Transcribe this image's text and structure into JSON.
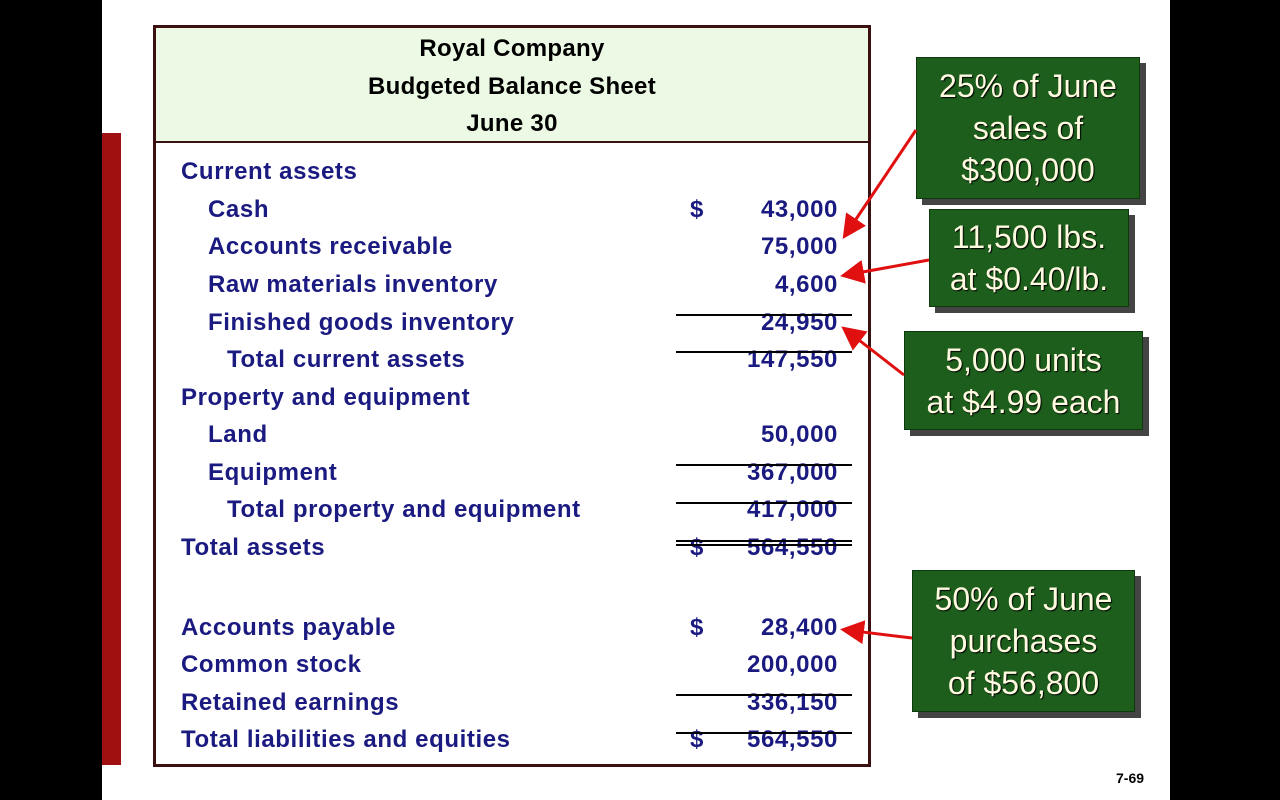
{
  "header": {
    "company": "Royal Company",
    "title": "Budgeted Balance Sheet",
    "date": "June 30"
  },
  "rows": [
    {
      "label": "Current assets",
      "level": 0,
      "dollar": "",
      "amount": ""
    },
    {
      "label": "Cash",
      "level": 1,
      "dollar": "$",
      "amount": "43,000"
    },
    {
      "label": "Accounts receivable",
      "level": 1,
      "dollar": "",
      "amount": "75,000"
    },
    {
      "label": "Raw materials inventory",
      "level": 1,
      "dollar": "",
      "amount": "4,600"
    },
    {
      "label": "Finished goods inventory",
      "level": 1,
      "dollar": "",
      "amount": "24,950"
    },
    {
      "label": "Total current assets",
      "level": 2,
      "dollar": "",
      "amount": "147,550"
    },
    {
      "label": "Property and equipment",
      "level": 0,
      "dollar": "",
      "amount": ""
    },
    {
      "label": "Land",
      "level": 1,
      "dollar": "",
      "amount": "50,000"
    },
    {
      "label": "Equipment",
      "level": 1,
      "dollar": "",
      "amount": "367,000"
    },
    {
      "label": "Total property and equipment",
      "level": 2,
      "dollar": "",
      "amount": "417,000"
    },
    {
      "label": "Total assets",
      "level": 0,
      "dollar": "$",
      "amount": "564,550"
    },
    {
      "label": "Accounts payable",
      "level": 0,
      "dollar": "$",
      "amount": "28,400"
    },
    {
      "label": "Common stock",
      "level": 0,
      "dollar": "",
      "amount": "200,000"
    },
    {
      "label": "Retained earnings",
      "level": 0,
      "dollar": "",
      "amount": "336,150"
    },
    {
      "label": "Total liabilities and equities",
      "level": 0,
      "dollar": "$",
      "amount": "564,550"
    }
  ],
  "callouts": [
    {
      "lines": [
        "25% of June",
        "sales of",
        "$300,000"
      ]
    },
    {
      "lines": [
        "11,500 lbs.",
        "at $0.40/lb."
      ]
    },
    {
      "lines": [
        "5,000 units",
        "at $4.99 each"
      ]
    },
    {
      "lines": [
        "50% of June",
        "purchases",
        "of $56,800"
      ]
    }
  ],
  "page_number": "7-69",
  "colors": {
    "text": "#1a1a80",
    "callout": "#1d5e1d",
    "arrow": "#e01010",
    "header_bg": "#ecf9e4",
    "sidebar": "#a01010"
  }
}
